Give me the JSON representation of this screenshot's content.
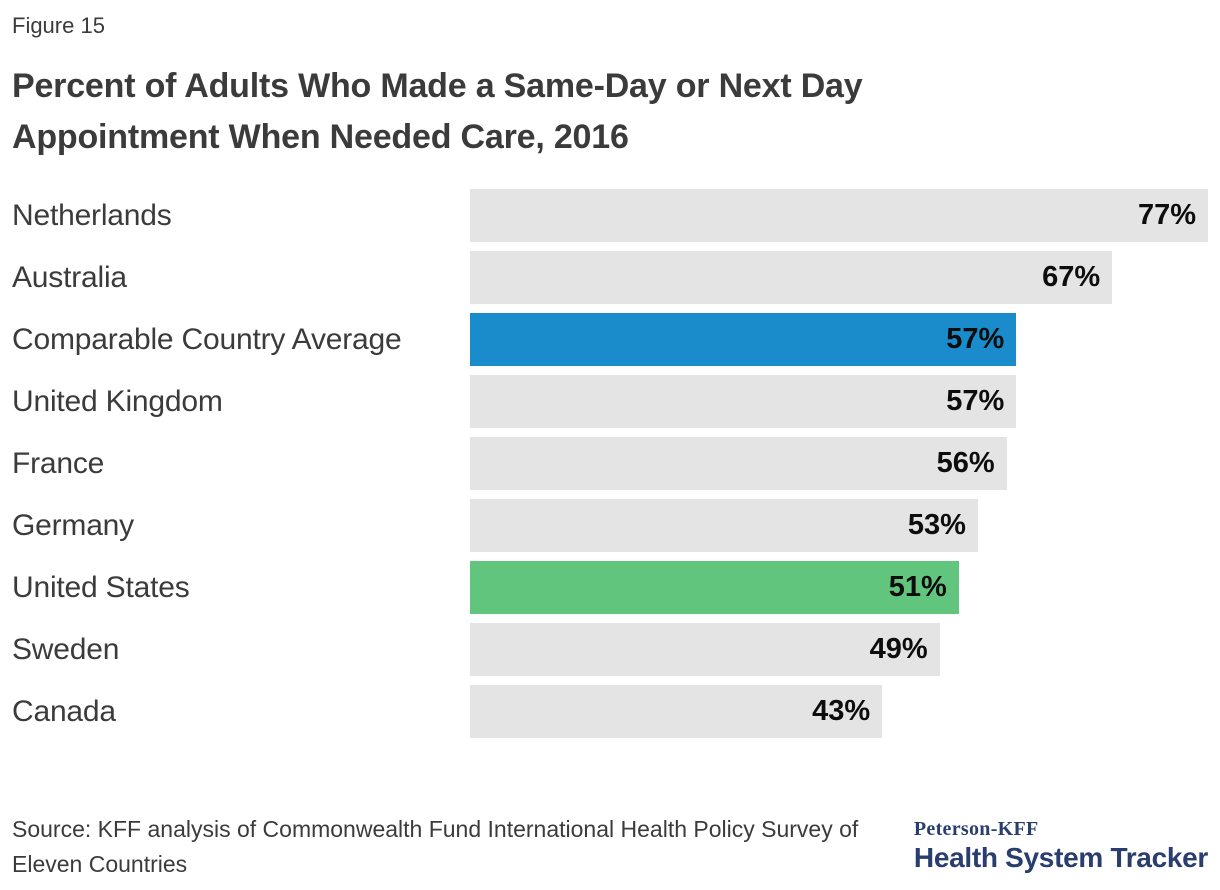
{
  "figure_label": "Figure 15",
  "source": "Source: KFF analysis of Commonwealth Fund International Health Policy Survey of Eleven Countries",
  "logo": {
    "brand": "Peterson-KFF",
    "name": "Health System Tracker",
    "color": "#293d6e"
  },
  "bar_palette": {
    "gray": "#e4e4e4",
    "blue": "#1a8bcb",
    "green": "#62c57e"
  },
  "text_colors": {
    "body": "#3b3b3b",
    "value": "#0d0d0d"
  },
  "chart_data": {
    "type": "bar",
    "orientation": "horizontal",
    "title": "Percent of Adults Who Made a Same-Day or Next Day Appointment When Needed Care, 2016",
    "categories": [
      "Netherlands",
      "Australia",
      "Comparable Country Average",
      "United Kingdom",
      "France",
      "Germany",
      "United States",
      "Sweden",
      "Canada"
    ],
    "values": [
      77,
      67,
      57,
      57,
      56,
      53,
      51,
      49,
      43
    ],
    "value_labels": [
      "77%",
      "67%",
      "57%",
      "57%",
      "56%",
      "53%",
      "51%",
      "49%",
      "43%"
    ],
    "bar_colors": [
      "gray",
      "gray",
      "blue",
      "gray",
      "gray",
      "gray",
      "green",
      "gray",
      "gray"
    ],
    "axis_max": 77,
    "xlim": [
      0,
      77
    ],
    "unit": "%",
    "grid": false,
    "legend": false,
    "value_label_position": "inside-end"
  }
}
